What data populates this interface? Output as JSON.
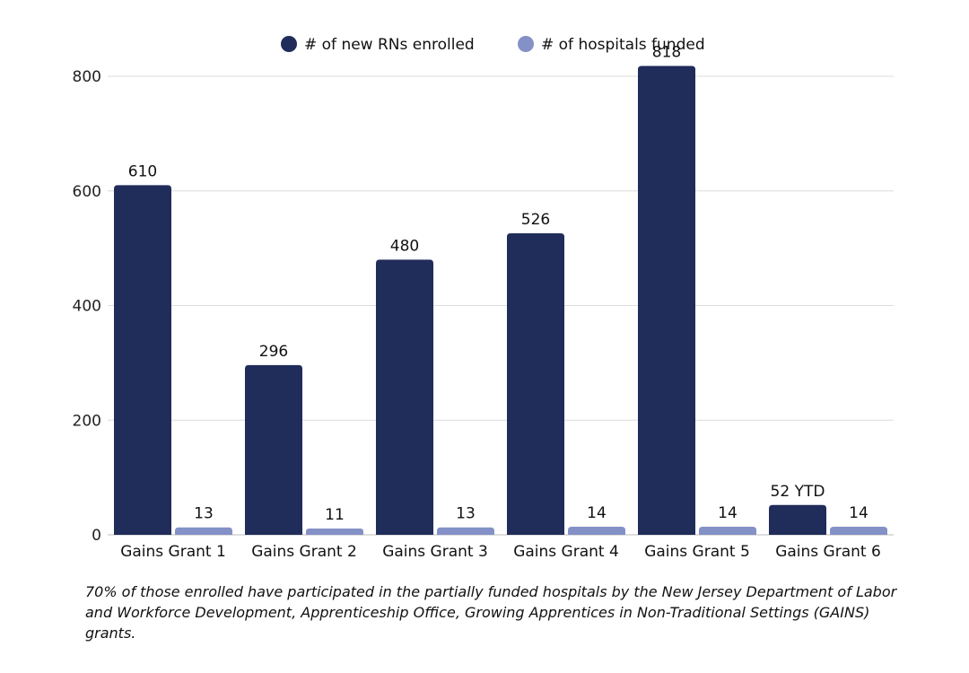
{
  "chart_data": {
    "type": "bar",
    "categories": [
      "Gains Grant 1",
      "Gains Grant 2",
      "Gains Grant 3",
      "Gains Grant 4",
      "Gains Grant 5",
      "Gains Grant 6"
    ],
    "series": [
      {
        "name": "# of new RNs enrolled",
        "values": [
          610,
          296,
          480,
          526,
          818,
          52
        ],
        "labels": [
          "610",
          "296",
          "480",
          "526",
          "818",
          "52 YTD"
        ],
        "color": "#202c5a"
      },
      {
        "name": "# of hospitals funded",
        "values": [
          13,
          11,
          13,
          14,
          14,
          14
        ],
        "labels": [
          "13",
          "11",
          "13",
          "14",
          "14",
          "14"
        ],
        "color": "#8491c7"
      }
    ],
    "yticks": [
      "0",
      "200",
      "400",
      "600",
      "800"
    ],
    "ylim": [
      0,
      800
    ],
    "grid": true,
    "legend": "top-center",
    "title": "",
    "xlabel": "",
    "ylabel": ""
  },
  "footnote": "70% of those enrolled have participated  in the partially funded hospitals by the New Jersey  Department of Labor and Workforce Development, Apprenticeship Office, Growing Apprentices in Non-Traditional Settings (GAINS) grants."
}
